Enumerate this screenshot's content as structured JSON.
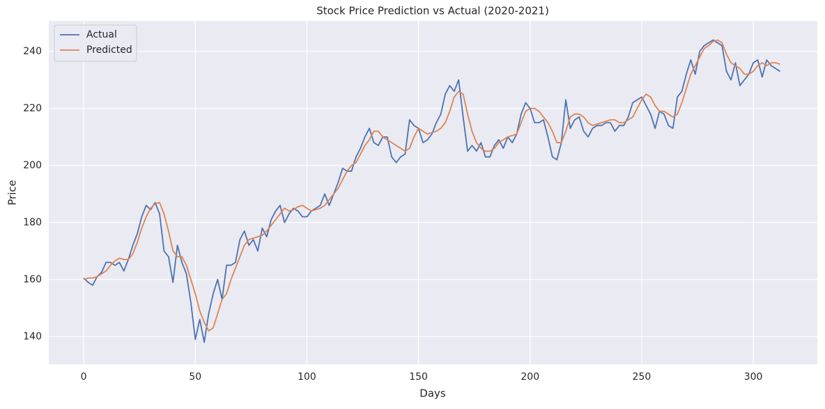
{
  "chart_data": {
    "type": "line",
    "title": "Stock Price Prediction vs Actual (2020-2021)",
    "xlabel": "Days",
    "ylabel": "Price",
    "x": [
      0,
      2,
      4,
      6,
      8,
      10,
      12,
      14,
      16,
      18,
      20,
      22,
      24,
      26,
      28,
      30,
      32,
      34,
      36,
      38,
      40,
      42,
      44,
      46,
      48,
      50,
      52,
      54,
      56,
      58,
      60,
      62,
      64,
      66,
      68,
      70,
      72,
      74,
      76,
      78,
      80,
      82,
      84,
      86,
      88,
      90,
      92,
      94,
      96,
      98,
      100,
      102,
      104,
      106,
      108,
      110,
      112,
      114,
      116,
      118,
      120,
      122,
      124,
      126,
      128,
      130,
      132,
      134,
      136,
      138,
      140,
      142,
      144,
      146,
      148,
      150,
      152,
      154,
      156,
      158,
      160,
      162,
      164,
      166,
      168,
      170,
      172,
      174,
      176,
      178,
      180,
      182,
      184,
      186,
      188,
      190,
      192,
      194,
      196,
      198,
      200,
      202,
      204,
      206,
      208,
      210,
      212,
      214,
      216,
      218,
      220,
      222,
      224,
      226,
      228,
      230,
      232,
      234,
      236,
      238,
      240,
      242,
      244,
      246,
      248,
      250,
      252,
      254,
      256,
      258,
      260,
      262,
      264,
      266,
      268,
      270,
      272,
      274,
      276,
      278,
      280,
      282,
      284,
      286,
      288,
      290,
      292,
      294,
      296,
      298,
      300,
      302,
      304,
      306,
      308,
      310,
      312
    ],
    "series": [
      {
        "name": "Actual",
        "color": "#4c72b0",
        "values": [
          160.5,
          159,
          158,
          161,
          162.5,
          166,
          166,
          165,
          166,
          163,
          167,
          172,
          176,
          182,
          186,
          184.5,
          187,
          183,
          170,
          168,
          159,
          172,
          166,
          162,
          152,
          139,
          146,
          138,
          148,
          155,
          160,
          153,
          165,
          165,
          166,
          174,
          177,
          172,
          174,
          170,
          178,
          175,
          181,
          184,
          186,
          180,
          183,
          185,
          184,
          182,
          182,
          184,
          185,
          186,
          190,
          186,
          190,
          194,
          199,
          198,
          198,
          203,
          206,
          210,
          213,
          208,
          207,
          210,
          210,
          203,
          201,
          203,
          204,
          216,
          214,
          213,
          208,
          209,
          211,
          215,
          218,
          225,
          228,
          226,
          230,
          217,
          205,
          207,
          205,
          208,
          203,
          203,
          207,
          209,
          206,
          210,
          208,
          211,
          218,
          222,
          220,
          215,
          215,
          216,
          210,
          203,
          202,
          208,
          223,
          213,
          216,
          217,
          212,
          210,
          213,
          214,
          214,
          215,
          215,
          212,
          214,
          214,
          217,
          222,
          223,
          224,
          221,
          218,
          213,
          219,
          218,
          214,
          213,
          224,
          226,
          232,
          237,
          232,
          240,
          242,
          243,
          244,
          243,
          242,
          233,
          230,
          236,
          228,
          230,
          232,
          236,
          237,
          231,
          237,
          235,
          234,
          233
        ]
      },
      {
        "name": "Predicted",
        "color": "#dd8452",
        "values": [
          160,
          160.5,
          160.5,
          161,
          162,
          163,
          165,
          166.5,
          167.5,
          167,
          167,
          169,
          173,
          178,
          182,
          185,
          186.5,
          187,
          183,
          177,
          170,
          168,
          168,
          165,
          160,
          155,
          149,
          145,
          142,
          143,
          148,
          153,
          155,
          160,
          164,
          168,
          172,
          174,
          174.5,
          175,
          175.5,
          177,
          179,
          181,
          183,
          185,
          184,
          184.5,
          185.5,
          186,
          185,
          184,
          184.5,
          185,
          186,
          188,
          190,
          192,
          195,
          198,
          200,
          201,
          204,
          207,
          209,
          212,
          212,
          210,
          209,
          208,
          207,
          206,
          205,
          206,
          210,
          213,
          212,
          211,
          211.5,
          212,
          213,
          215,
          219,
          224,
          226,
          225,
          218,
          212,
          208,
          206,
          205,
          205,
          206,
          208,
          209,
          210,
          210.5,
          211,
          215,
          219,
          220,
          220,
          219,
          217,
          215,
          212,
          208,
          208,
          212,
          217,
          218,
          218,
          217,
          215,
          214,
          214.5,
          215,
          215.5,
          216,
          216,
          215,
          215,
          216,
          217,
          220,
          223,
          225,
          224,
          221,
          219,
          219,
          218,
          217,
          218,
          222,
          227,
          232,
          235,
          238,
          241,
          242,
          243.5,
          244,
          243,
          239,
          236,
          235,
          234,
          232,
          232,
          233,
          235,
          236,
          235,
          236,
          236,
          235.5
        ]
      }
    ],
    "xlim": [
      -15.65,
      328.7
    ],
    "ylim": [
      130.2,
      250.7
    ],
    "xticks": [
      0,
      50,
      100,
      150,
      200,
      250,
      300
    ],
    "yticks": [
      140,
      160,
      180,
      200,
      220,
      240
    ],
    "grid": true,
    "legend": "upper left"
  }
}
